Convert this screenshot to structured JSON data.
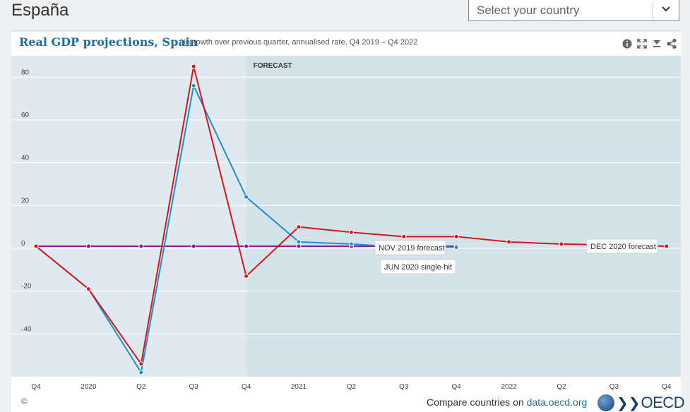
{
  "page": {
    "country_title": "España",
    "country_select_placeholder": "Select your country"
  },
  "chart_header": {
    "title": "Real GDP projections, Spain",
    "subtitle": "% growth over previous quarter, annualised rate, Q4 2019 – Q4 2022",
    "icons": [
      "info-icon",
      "fullscreen-icon",
      "download-icon",
      "share-icon"
    ]
  },
  "footer": {
    "copyright": "©",
    "compare_prefix": "Compare countries on",
    "compare_link": "data.oecd.org",
    "logo_text": "OECD"
  },
  "chart_data": {
    "type": "line",
    "title": "Real GDP projections, Spain",
    "categories": [
      "Q4",
      "2020",
      "Q2",
      "Q3",
      "Q4",
      "2021",
      "Q2",
      "Q3",
      "Q4",
      "2022",
      "Q2",
      "Q3",
      "Q4"
    ],
    "ylim": [
      -60,
      90
    ],
    "yticks": [
      -40,
      -20,
      0,
      20,
      40,
      60,
      80
    ],
    "ytick_labels": [
      "-40",
      "-20",
      "0",
      "20",
      "40",
      "60",
      "80"
    ],
    "grid": true,
    "forecast_start_index": 4,
    "forecast_label": "FORECAST",
    "colors": {
      "plot_bg": "#dfeaf0",
      "forecast_bg": "#d4e2ea",
      "grid": "#ffffff"
    },
    "series": [
      {
        "name": "DEC 2020 forecast",
        "color": "#d9141a",
        "values": [
          1,
          -19,
          -54,
          85,
          -13,
          10,
          7.5,
          5.5,
          5.5,
          3,
          2,
          1.5,
          1
        ]
      },
      {
        "name": "JUN 2020 single-hit",
        "color": "#1a8fd1",
        "values": [
          1,
          -19,
          -58,
          76,
          24,
          3,
          2,
          0.5,
          0.5,
          null,
          null,
          null,
          null
        ]
      },
      {
        "name": "NOV 2019 forecast",
        "color": "#8a1a9c",
        "values": [
          1,
          1,
          1,
          1,
          1,
          1,
          1,
          1,
          1,
          null,
          null,
          null,
          null
        ]
      }
    ]
  }
}
